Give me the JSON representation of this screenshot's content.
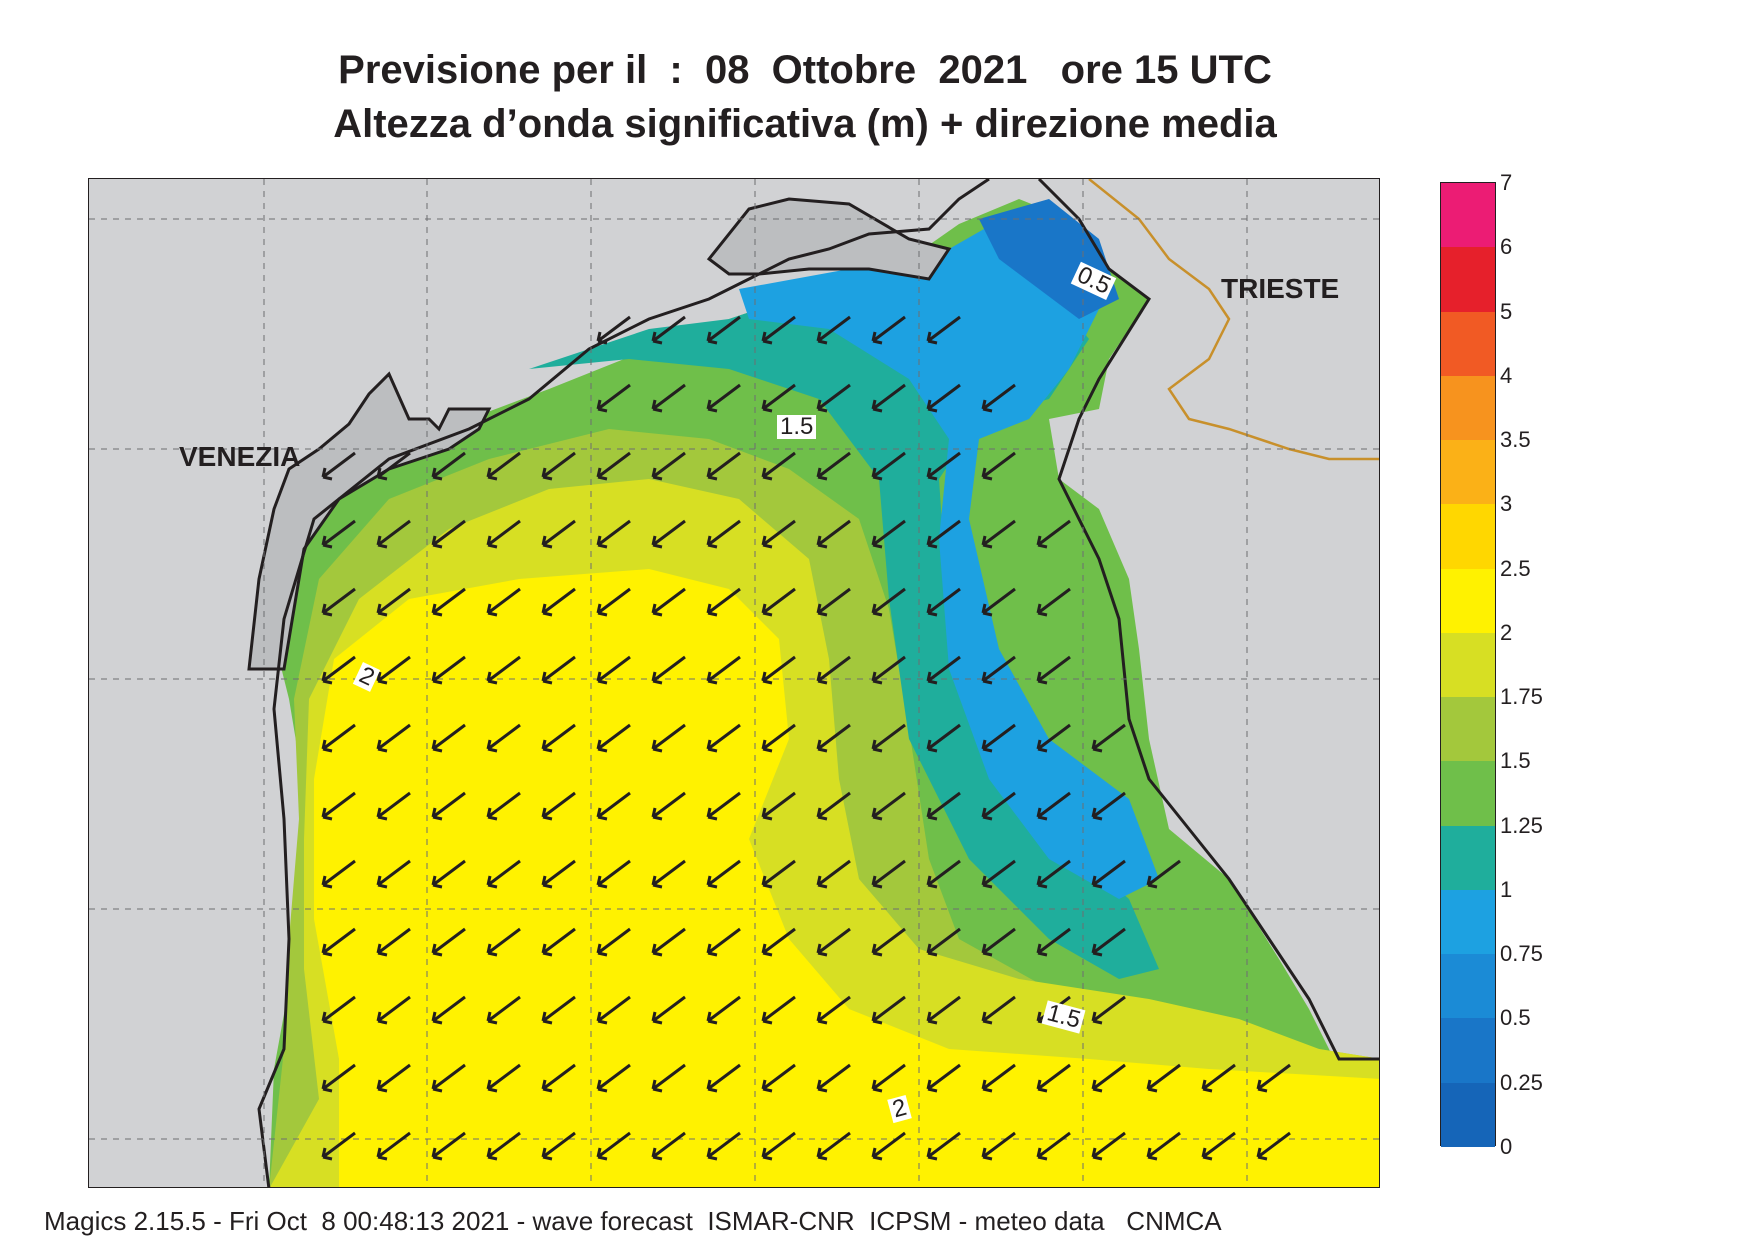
{
  "title": {
    "line1": "Previsione per il  :  08  Ottobre  2021   ore 15 UTC",
    "line2": "Altezza d’onda significativa (m) + direzione media"
  },
  "places": {
    "venezia": "VENEZIA",
    "trieste": "TRIESTE"
  },
  "contour_labels": {
    "c05": "0.5",
    "c15a": "1.5",
    "c2a": "2",
    "c15b": "1.5",
    "c2b": "2"
  },
  "legend": {
    "ticks": [
      "7",
      "6",
      "5",
      "4",
      "3.5",
      "3",
      "2.5",
      "2",
      "1.75",
      "1.5",
      "1.25",
      "1",
      "0.75",
      "0.5",
      "0.25",
      "0"
    ],
    "colors": [
      "#ec1c74",
      "#e6202b",
      "#f15a24",
      "#f7931e",
      "#fbb117",
      "#ffd700",
      "#fff200",
      "#d7df23",
      "#a3c83c",
      "#6fbf4a",
      "#1fae9c",
      "#1da1e1",
      "#1b8bd6",
      "#1976c8",
      "#1565b8"
    ]
  },
  "colors": {
    "land": "#d1d2d4",
    "land_mask": "#bcbec0",
    "coast": "#231f20",
    "border": "#c8902b",
    "arrow": "#231f20"
  },
  "footer": "Magics 2.15.5 - Fri Oct  8 00:48:13 2021 - wave forecast  ISMAR-CNR  ICPSM - meteo data   CNMCA"
}
